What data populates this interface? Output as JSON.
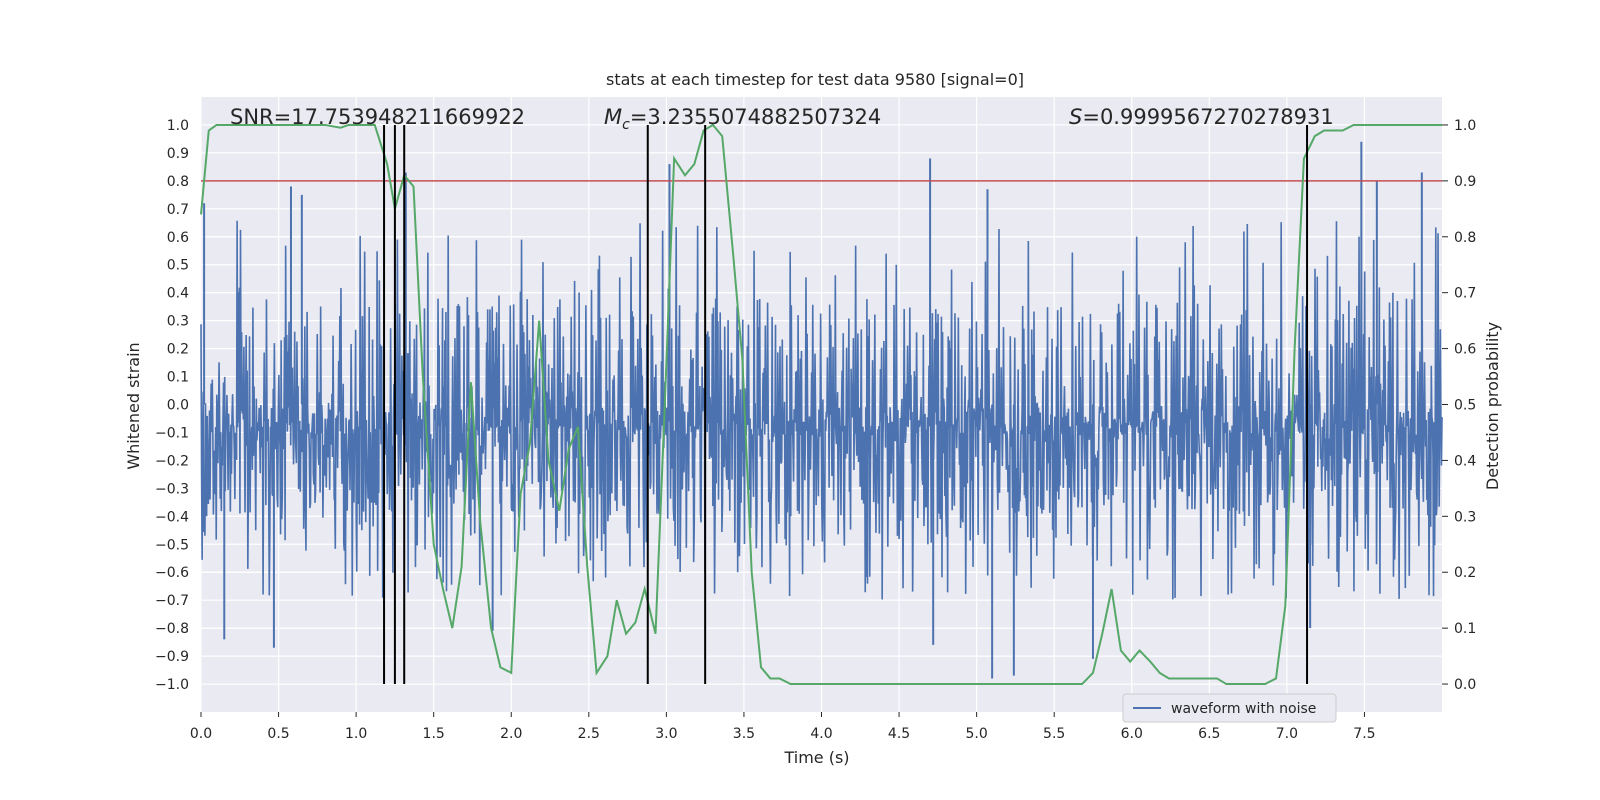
{
  "chart_data": {
    "type": "line",
    "title": "stats at each timestep for test data 9580 [signal=0]",
    "xlabel": "Time (s)",
    "ylabel": "Whitened strain",
    "y2label": "Detection probability",
    "xlim": [
      0.0,
      8.0
    ],
    "ylim": [
      -1.1,
      1.1
    ],
    "y2lim": [
      -0.05,
      1.05
    ],
    "x_ticks": [
      0.0,
      0.5,
      1.0,
      1.5,
      2.0,
      2.5,
      3.0,
      3.5,
      4.0,
      4.5,
      5.0,
      5.5,
      6.0,
      6.5,
      7.0,
      7.5
    ],
    "x_tick_labels": [
      "0.0",
      "0.5",
      "1.0",
      "1.5",
      "2.0",
      "2.5",
      "3.0",
      "3.5",
      "4.0",
      "4.5",
      "5.0",
      "5.5",
      "6.0",
      "6.5",
      "7.0",
      "7.5"
    ],
    "y_ticks": [
      1.0,
      0.9,
      0.8,
      0.7,
      0.6,
      0.5,
      0.4,
      0.3,
      0.2,
      0.1,
      0.0,
      -0.1,
      -0.2,
      -0.3,
      -0.4,
      -0.5,
      -0.6,
      -0.7,
      -0.8,
      -0.9,
      -1.0
    ],
    "y_tick_labels": [
      "1.0",
      "0.9",
      "0.8",
      "0.7",
      "0.6",
      "0.5",
      "0.4",
      "0.3",
      "0.2",
      "0.1",
      "0.0",
      "−0.1",
      "−0.2",
      "−0.3",
      "−0.4",
      "−0.5",
      "−0.6",
      "−0.7",
      "−0.8",
      "−0.9",
      "−1.0"
    ],
    "y2_ticks": [
      1.0,
      0.9,
      0.8,
      0.7,
      0.6,
      0.5,
      0.4,
      0.3,
      0.2,
      0.1,
      0.0
    ],
    "y2_tick_labels": [
      "1.0",
      "0.9",
      "0.8",
      "0.7",
      "0.6",
      "0.5",
      "0.4",
      "0.3",
      "0.2",
      "0.1",
      "0.0"
    ],
    "grid": true,
    "legend": {
      "placement": "lower-right",
      "entries": [
        "waveform with noise"
      ]
    },
    "annotations": {
      "snr": "SNR=17.753948211669922",
      "mc_symbol": "M",
      "mc_subscript": "c",
      "mc_value": "=3.2355074882507324",
      "s_symbol": "S",
      "s_value": "=0.9999567270278931"
    },
    "threshold": {
      "y2": 0.9,
      "color": "#c44e52"
    },
    "vertical_lines_x": [
      1.18,
      1.25,
      1.31,
      2.88,
      3.25,
      7.13
    ],
    "vertical_line_color": "#000000",
    "waveform": {
      "name": "waveform with noise",
      "color": "#4c72b0",
      "x_range": [
        0.0,
        8.0
      ],
      "typical_envelope": [
        -0.4,
        0.38
      ],
      "peaks": [
        {
          "x": 0.02,
          "y": 0.72
        },
        {
          "x": 0.58,
          "y": 0.78
        },
        {
          "x": 0.65,
          "y": 0.75
        },
        {
          "x": 1.32,
          "y": 0.83
        },
        {
          "x": 3.02,
          "y": 0.86
        },
        {
          "x": 4.7,
          "y": 0.88
        },
        {
          "x": 5.07,
          "y": 0.77
        },
        {
          "x": 7.48,
          "y": 0.94
        },
        {
          "x": 7.58,
          "y": 0.8
        },
        {
          "x": 7.87,
          "y": 0.83
        },
        {
          "x": 0.47,
          "y": -0.87
        },
        {
          "x": 0.15,
          "y": -0.84
        },
        {
          "x": 1.88,
          "y": -0.81
        },
        {
          "x": 4.72,
          "y": -0.86
        },
        {
          "x": 5.1,
          "y": -0.98
        },
        {
          "x": 5.24,
          "y": -0.97
        },
        {
          "x": 5.75,
          "y": -0.91
        },
        {
          "x": 7.15,
          "y": -0.8
        }
      ]
    },
    "series": [
      {
        "name": "detection probability",
        "axis": "right",
        "color": "#55a868",
        "x": [
          0.0,
          0.05,
          0.1,
          0.2,
          0.3,
          0.4,
          0.5,
          0.6,
          0.7,
          0.8,
          0.9,
          0.95,
          1.0,
          1.05,
          1.12,
          1.2,
          1.25,
          1.31,
          1.37,
          1.43,
          1.5,
          1.56,
          1.62,
          1.68,
          1.74,
          1.8,
          1.87,
          1.93,
          2.0,
          2.06,
          2.12,
          2.18,
          2.24,
          2.31,
          2.37,
          2.43,
          2.49,
          2.55,
          2.62,
          2.68,
          2.74,
          2.8,
          2.86,
          2.93,
          2.99,
          3.05,
          3.12,
          3.18,
          3.24,
          3.3,
          3.36,
          3.43,
          3.49,
          3.55,
          3.61,
          3.67,
          3.73,
          3.8,
          3.86,
          3.92,
          4.0,
          4.5,
          5.0,
          5.5,
          5.62,
          5.68,
          5.75,
          5.81,
          5.87,
          5.93,
          5.99,
          6.05,
          6.12,
          6.18,
          6.24,
          6.3,
          6.37,
          6.43,
          6.49,
          6.55,
          6.61,
          6.68,
          6.74,
          6.8,
          6.86,
          6.93,
          6.99,
          7.05,
          7.11,
          7.18,
          7.24,
          7.3,
          7.36,
          7.43,
          7.49,
          7.55,
          7.61,
          7.8,
          8.0
        ],
        "y": [
          0.84,
          0.99,
          1.0,
          1.0,
          1.0,
          1.0,
          1.0,
          1.0,
          1.0,
          1.0,
          0.995,
          1.0,
          1.0,
          1.0,
          1.0,
          0.93,
          0.85,
          0.91,
          0.89,
          0.55,
          0.25,
          0.17,
          0.1,
          0.21,
          0.54,
          0.29,
          0.1,
          0.03,
          0.02,
          0.34,
          0.43,
          0.65,
          0.4,
          0.31,
          0.42,
          0.46,
          0.21,
          0.02,
          0.05,
          0.15,
          0.09,
          0.11,
          0.17,
          0.09,
          0.5,
          0.94,
          0.91,
          0.93,
          0.99,
          1.0,
          0.98,
          0.77,
          0.58,
          0.2,
          0.03,
          0.01,
          0.01,
          0.0,
          0.0,
          0.0,
          0.0,
          0.0,
          0.0,
          0.0,
          0.0,
          0.0,
          0.02,
          0.09,
          0.17,
          0.06,
          0.04,
          0.06,
          0.04,
          0.02,
          0.01,
          0.01,
          0.01,
          0.01,
          0.01,
          0.01,
          0.0,
          0.0,
          0.0,
          0.0,
          0.0,
          0.01,
          0.14,
          0.6,
          0.94,
          0.98,
          0.99,
          0.99,
          0.99,
          1.0,
          1.0,
          1.0,
          1.0,
          1.0,
          1.0
        ]
      }
    ]
  }
}
